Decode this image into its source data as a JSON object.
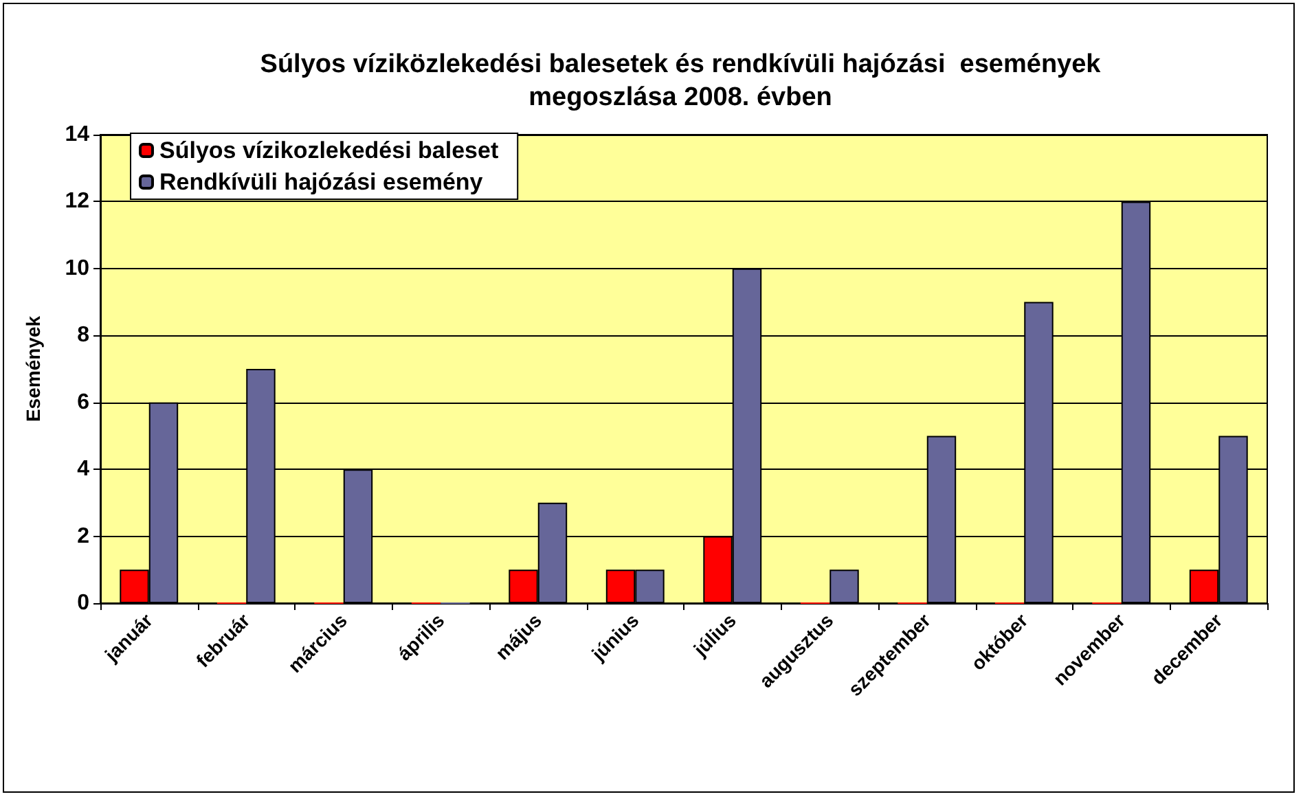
{
  "chart_data": {
    "type": "bar",
    "title": "Súlyos víziközlekedési balesetek és rendkívüli hajózási  események\nmegoszlása 2008. évben",
    "ylabel": "Események",
    "categories": [
      "január",
      "február",
      "március",
      "április",
      "május",
      "június",
      "július",
      "augusztus",
      "szeptember",
      "október",
      "november",
      "december"
    ],
    "series": [
      {
        "name": "Súlyos vízikozlekedési baleset",
        "color": "#ff0000",
        "values": [
          1,
          0,
          0,
          0,
          1,
          1,
          2,
          0,
          0,
          0,
          0,
          1
        ]
      },
      {
        "name": "Rendkívüli hajózási esemény",
        "color": "#666699",
        "values": [
          6,
          7,
          4,
          0,
          3,
          1,
          10,
          1,
          5,
          9,
          12,
          5
        ]
      }
    ],
    "ylim": [
      0,
      14
    ],
    "yticks": [
      0,
      2,
      4,
      6,
      8,
      10,
      12,
      14
    ],
    "grid": "y",
    "legend": "top left"
  }
}
